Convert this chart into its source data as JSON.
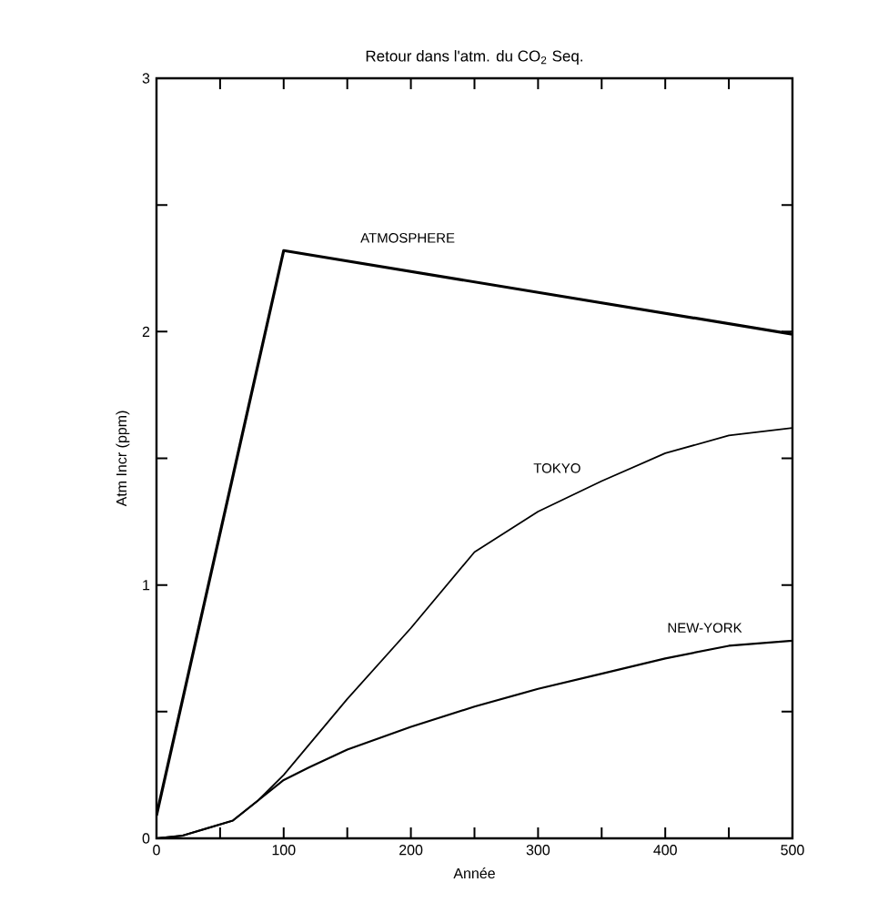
{
  "chart_data": {
    "type": "line",
    "title": "Retour dans l'atm. du CO$_{2}$ Seq.",
    "xlabel": "Année",
    "ylabel": "Atm Incr (ppm)",
    "xlim": [
      0,
      500
    ],
    "ylim": [
      0,
      3
    ],
    "xticks": [
      0,
      {
        "value": 50,
        "label": null
      },
      100,
      {
        "value": 150,
        "label": null
      },
      200,
      {
        "value": 250,
        "label": null
      },
      300,
      {
        "value": 350,
        "label": null
      },
      400,
      {
        "value": 450,
        "label": null
      },
      500
    ],
    "yticks": [
      0,
      {
        "value": 0.5,
        "label": null
      },
      1,
      {
        "value": 1.5,
        "label": null
      },
      2,
      {
        "value": 2.5,
        "label": null
      },
      3
    ],
    "grid": false,
    "marker": "none",
    "line_style": "solid",
    "series": [
      {
        "name": "ATMOSPHERE",
        "color": "#000000",
        "x": [
          0,
          100,
          500
        ],
        "values": [
          0.09,
          2.32,
          1.99
        ]
      },
      {
        "name": "TOKYO",
        "color": "#000000",
        "x": [
          0,
          20,
          40,
          60,
          80,
          100,
          150,
          200,
          250,
          300,
          350,
          400,
          450,
          500
        ],
        "values": [
          0,
          0.01,
          0.04,
          0.07,
          0.15,
          0.25,
          0.55,
          0.83,
          1.13,
          1.29,
          1.41,
          1.52,
          1.59,
          1.62
        ]
      },
      {
        "name": "NEW-YORK",
        "color": "#000000",
        "x": [
          0,
          20,
          40,
          60,
          80,
          100,
          120,
          150,
          200,
          250,
          300,
          350,
          400,
          450,
          500
        ],
        "values": [
          0,
          0.01,
          0.04,
          0.07,
          0.15,
          0.23,
          0.28,
          0.35,
          0.44,
          0.52,
          0.59,
          0.65,
          0.71,
          0.76,
          0.78
        ]
      }
    ]
  }
}
